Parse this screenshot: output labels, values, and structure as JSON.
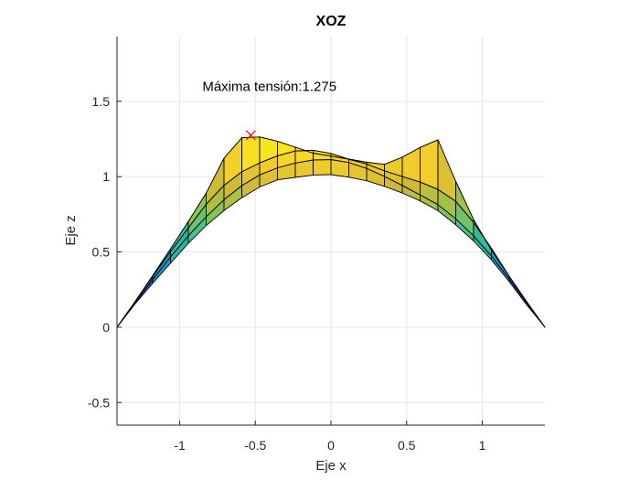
{
  "chart_data": {
    "type": "surface-projection",
    "title": "XOZ",
    "xlabel": "Eje x",
    "ylabel": "Eje z",
    "xlim": [
      -1.414,
      1.414
    ],
    "ylim": [
      -0.65,
      1.93
    ],
    "xticks": [
      -1,
      -0.5,
      0,
      0.5,
      1
    ],
    "xtick_labels": [
      "-1",
      "-0.5",
      "0",
      "0.5",
      "1"
    ],
    "yticks": [
      -0.5,
      0,
      0.5,
      1,
      1.5
    ],
    "ytick_labels": [
      "-0.5",
      "0",
      "0.5",
      "1",
      "1.5"
    ],
    "grid": true,
    "annotation": {
      "text": "Máxima tensión:1.275",
      "x": -0.85,
      "y": 1.57
    },
    "max_marker": {
      "x": -0.53,
      "y": 1.275,
      "color": "#ff0000"
    },
    "colormap": [
      "#3e26a8",
      "#2f55f8",
      "#1d8ad6",
      "#1ab0b4",
      "#47c28a",
      "#9bc24a",
      "#d4b936",
      "#f9d42a",
      "#f9fb0e"
    ],
    "color_range": [
      0,
      1.275
    ],
    "surface_rows": [
      {
        "x": [
          -1.414,
          -1.26,
          -1.1,
          -0.95,
          -0.8,
          -0.65,
          -0.53,
          -0.4,
          -0.25,
          -0.1,
          0.05,
          0.2,
          0.35,
          0.5,
          0.6,
          0.72,
          0.85,
          1.0,
          1.15,
          1.3,
          1.414
        ],
        "z": [
          0.0,
          0.22,
          0.46,
          0.69,
          0.93,
          1.24,
          1.275,
          1.25,
          1.2,
          1.15,
          1.13,
          1.1,
          1.08,
          1.14,
          1.2,
          1.25,
          0.9,
          0.6,
          0.38,
          0.16,
          0.0
        ]
      },
      {
        "x": [
          -1.414,
          -1.26,
          -1.1,
          -0.95,
          -0.8,
          -0.65,
          -0.5,
          -0.35,
          -0.2,
          -0.05,
          0.1,
          0.25,
          0.4,
          0.55,
          0.7,
          0.85,
          1.0,
          1.15,
          1.3,
          1.414
        ],
        "z": [
          0.0,
          0.22,
          0.45,
          0.65,
          0.85,
          1.0,
          1.08,
          1.14,
          1.18,
          1.17,
          1.12,
          1.08,
          1.02,
          0.98,
          0.92,
          0.82,
          0.62,
          0.38,
          0.16,
          0.0
        ]
      },
      {
        "x": [
          -1.414,
          -1.26,
          -1.1,
          -0.95,
          -0.8,
          -0.65,
          -0.5,
          -0.35,
          -0.2,
          -0.05,
          0.1,
          0.25,
          0.4,
          0.55,
          0.7,
          0.85,
          1.0,
          1.15,
          1.3,
          1.414
        ],
        "z": [
          0.0,
          0.21,
          0.42,
          0.6,
          0.76,
          0.9,
          1.0,
          1.06,
          1.1,
          1.12,
          1.1,
          1.05,
          0.98,
          0.9,
          0.82,
          0.7,
          0.55,
          0.36,
          0.15,
          0.0
        ]
      },
      {
        "x": [
          -1.414,
          -1.26,
          -1.1,
          -0.95,
          -0.8,
          -0.65,
          -0.5,
          -0.35,
          -0.2,
          -0.05,
          0.1,
          0.25,
          0.4,
          0.55,
          0.7,
          0.85,
          1.0,
          1.15,
          1.3,
          1.414
        ],
        "z": [
          0.0,
          0.2,
          0.38,
          0.55,
          0.7,
          0.82,
          0.92,
          0.98,
          1.0,
          1.02,
          1.0,
          0.97,
          0.92,
          0.86,
          0.78,
          0.66,
          0.52,
          0.34,
          0.14,
          0.0
        ]
      }
    ]
  }
}
